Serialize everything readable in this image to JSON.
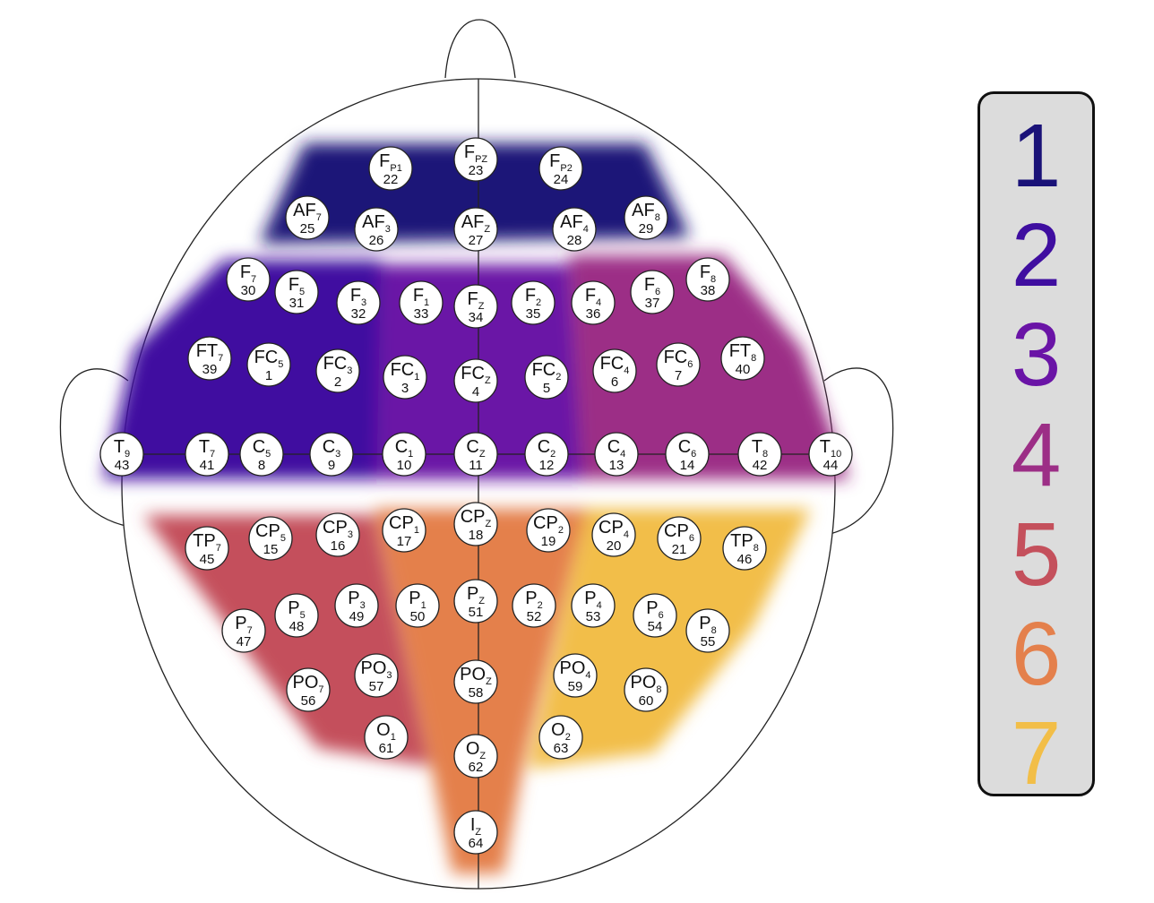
{
  "regions": [
    {
      "id": 1,
      "color": "#1a1278"
    },
    {
      "id": 2,
      "color": "#3f0ea0"
    },
    {
      "id": 3,
      "color": "#6a14a6"
    },
    {
      "id": 4,
      "color": "#9c2e86"
    },
    {
      "id": 5,
      "color": "#c4505c"
    },
    {
      "id": 6,
      "color": "#e4804c"
    },
    {
      "id": 7,
      "color": "#f2be48"
    }
  ],
  "legend": {
    "items": [
      {
        "label": "1",
        "color": "#1a1278"
      },
      {
        "label": "2",
        "color": "#3f0ea0"
      },
      {
        "label": "3",
        "color": "#6a14a6"
      },
      {
        "label": "4",
        "color": "#9c2e86"
      },
      {
        "label": "5",
        "color": "#c4505c"
      },
      {
        "label": "6",
        "color": "#e4804c"
      },
      {
        "label": "7",
        "color": "#f2be48"
      }
    ]
  },
  "electrodes": [
    {
      "main": "F",
      "sub": "P1",
      "num": "22"
    },
    {
      "main": "F",
      "sub": "PZ",
      "num": "23"
    },
    {
      "main": "F",
      "sub": "P2",
      "num": "24"
    },
    {
      "main": "AF",
      "sub": "7",
      "num": "25"
    },
    {
      "main": "AF",
      "sub": "3",
      "num": "26"
    },
    {
      "main": "AF",
      "sub": "Z",
      "num": "27"
    },
    {
      "main": "AF",
      "sub": "4",
      "num": "28"
    },
    {
      "main": "AF",
      "sub": "8",
      "num": "29"
    },
    {
      "main": "F",
      "sub": "7",
      "num": "30"
    },
    {
      "main": "F",
      "sub": "5",
      "num": "31"
    },
    {
      "main": "F",
      "sub": "3",
      "num": "32"
    },
    {
      "main": "F",
      "sub": "1",
      "num": "33"
    },
    {
      "main": "F",
      "sub": "Z",
      "num": "34"
    },
    {
      "main": "F",
      "sub": "2",
      "num": "35"
    },
    {
      "main": "F",
      "sub": "4",
      "num": "36"
    },
    {
      "main": "F",
      "sub": "6",
      "num": "37"
    },
    {
      "main": "F",
      "sub": "8",
      "num": "38"
    },
    {
      "main": "FT",
      "sub": "7",
      "num": "39"
    },
    {
      "main": "FC",
      "sub": "5",
      "num": "1"
    },
    {
      "main": "FC",
      "sub": "3",
      "num": "2"
    },
    {
      "main": "FC",
      "sub": "1",
      "num": "3"
    },
    {
      "main": "FC",
      "sub": "Z",
      "num": "4"
    },
    {
      "main": "FC",
      "sub": "2",
      "num": "5"
    },
    {
      "main": "FC",
      "sub": "4",
      "num": "6"
    },
    {
      "main": "FC",
      "sub": "6",
      "num": "7"
    },
    {
      "main": "FT",
      "sub": "8",
      "num": "40"
    },
    {
      "main": "T",
      "sub": "9",
      "num": "43"
    },
    {
      "main": "T",
      "sub": "7",
      "num": "41"
    },
    {
      "main": "C",
      "sub": "5",
      "num": "8"
    },
    {
      "main": "C",
      "sub": "3",
      "num": "9"
    },
    {
      "main": "C",
      "sub": "1",
      "num": "10"
    },
    {
      "main": "C",
      "sub": "Z",
      "num": "11"
    },
    {
      "main": "C",
      "sub": "2",
      "num": "12"
    },
    {
      "main": "C",
      "sub": "4",
      "num": "13"
    },
    {
      "main": "C",
      "sub": "6",
      "num": "14"
    },
    {
      "main": "T",
      "sub": "8",
      "num": "42"
    },
    {
      "main": "T",
      "sub": "10",
      "num": "44"
    },
    {
      "main": "TP",
      "sub": "7",
      "num": "45"
    },
    {
      "main": "CP",
      "sub": "5",
      "num": "15"
    },
    {
      "main": "CP",
      "sub": "3",
      "num": "16"
    },
    {
      "main": "CP",
      "sub": "1",
      "num": "17"
    },
    {
      "main": "CP",
      "sub": "Z",
      "num": "18"
    },
    {
      "main": "CP",
      "sub": "2",
      "num": "19"
    },
    {
      "main": "CP",
      "sub": "4",
      "num": "20"
    },
    {
      "main": "CP",
      "sub": "6",
      "num": "21"
    },
    {
      "main": "TP",
      "sub": "8",
      "num": "46"
    },
    {
      "main": "P",
      "sub": "7",
      "num": "47"
    },
    {
      "main": "P",
      "sub": "5",
      "num": "48"
    },
    {
      "main": "P",
      "sub": "3",
      "num": "49"
    },
    {
      "main": "P",
      "sub": "1",
      "num": "50"
    },
    {
      "main": "P",
      "sub": "Z",
      "num": "51"
    },
    {
      "main": "P",
      "sub": "2",
      "num": "52"
    },
    {
      "main": "P",
      "sub": "4",
      "num": "53"
    },
    {
      "main": "P",
      "sub": "6",
      "num": "54"
    },
    {
      "main": "P",
      "sub": "8",
      "num": "55"
    },
    {
      "main": "PO",
      "sub": "7",
      "num": "56"
    },
    {
      "main": "PO",
      "sub": "3",
      "num": "57"
    },
    {
      "main": "PO",
      "sub": "Z",
      "num": "58"
    },
    {
      "main": "PO",
      "sub": "4",
      "num": "59"
    },
    {
      "main": "PO",
      "sub": "8",
      "num": "60"
    },
    {
      "main": "O",
      "sub": "1",
      "num": "61"
    },
    {
      "main": "O",
      "sub": "Z",
      "num": "62"
    },
    {
      "main": "O",
      "sub": "2",
      "num": "63"
    },
    {
      "main": "I",
      "sub": "Z",
      "num": "64"
    }
  ]
}
